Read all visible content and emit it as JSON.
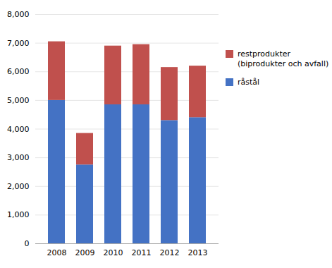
{
  "chart_data": {
    "type": "bar",
    "stacked": true,
    "categories": [
      "2008",
      "2009",
      "2010",
      "2011",
      "2012",
      "2013"
    ],
    "series": [
      {
        "name": "råstål",
        "color": "#4472C4",
        "values": [
          5000,
          2750,
          4850,
          4850,
          4300,
          4400
        ]
      },
      {
        "name": "restprodukter\n(biprodukter och avfall)",
        "color": "#C0504D",
        "values": [
          2050,
          1100,
          2050,
          2100,
          1850,
          1800
        ]
      }
    ],
    "ylim": [
      0,
      8000
    ],
    "yticks": [
      0,
      1000,
      2000,
      3000,
      4000,
      5000,
      6000,
      7000,
      8000
    ],
    "grid": true,
    "legend": "right"
  }
}
